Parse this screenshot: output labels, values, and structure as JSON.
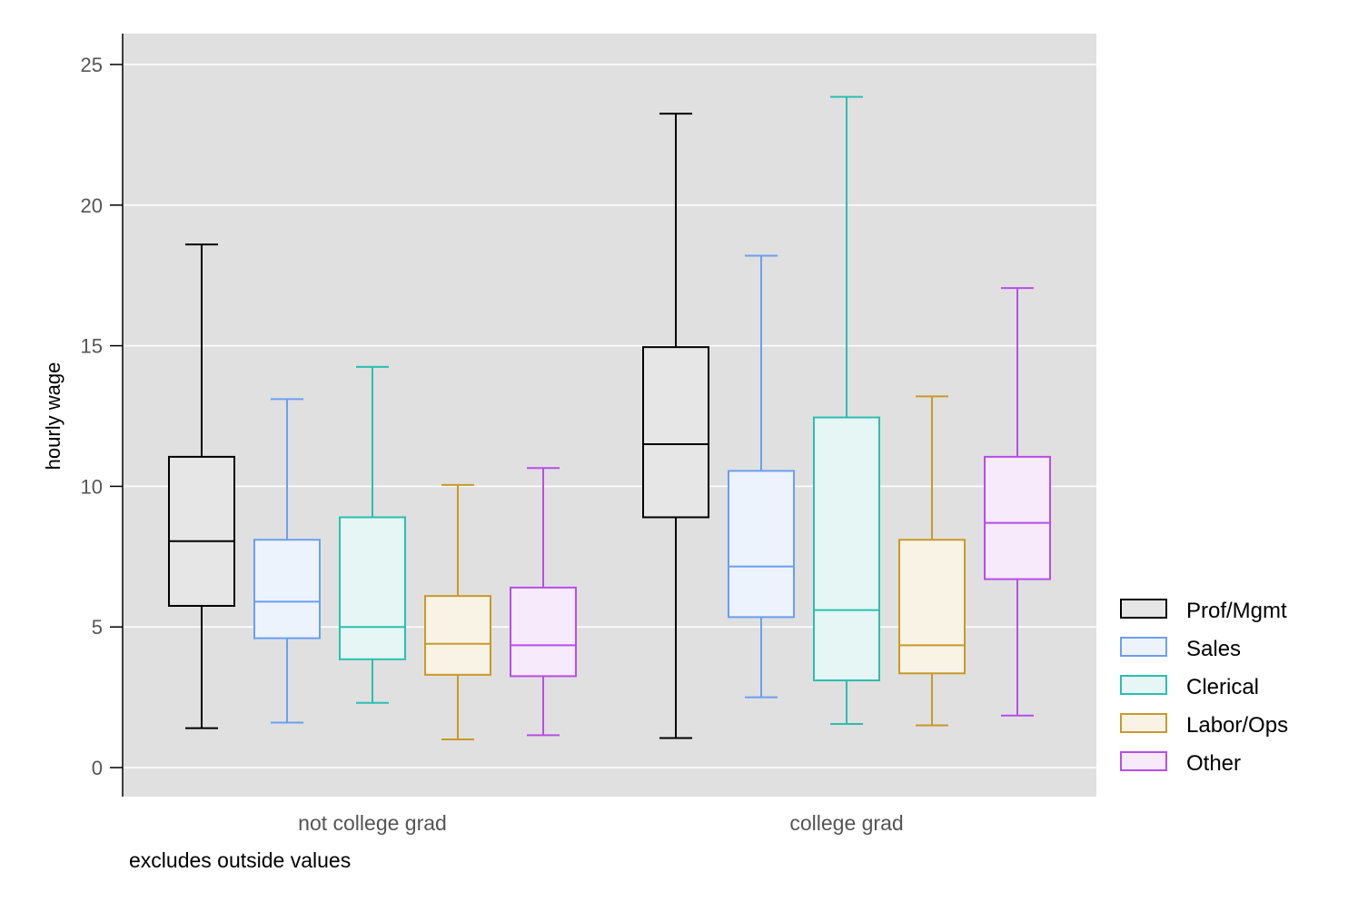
{
  "chart_data": {
    "type": "box",
    "title": "",
    "xlabel": "",
    "ylabel": "hourly wage",
    "note": "excludes outside values",
    "ylim": [
      -1,
      26
    ],
    "yticks": [
      0,
      5,
      10,
      15,
      20,
      25
    ],
    "grid": true,
    "legend_position": "right",
    "categories": [
      "not college grad",
      "college grad"
    ],
    "series": [
      {
        "name": "Prof/Mgmt",
        "color": "#000000",
        "fill": "#e6e6e6",
        "boxes": [
          {
            "whisker_low": 1.4,
            "q1": 5.75,
            "median": 8.05,
            "q3": 11.05,
            "whisker_high": 18.6
          },
          {
            "whisker_low": 1.05,
            "q1": 8.9,
            "median": 11.5,
            "q3": 14.95,
            "whisker_high": 23.25
          }
        ]
      },
      {
        "name": "Sales",
        "color": "#6a9ff0",
        "fill": "#edf3fd",
        "boxes": [
          {
            "whisker_low": 1.6,
            "q1": 4.6,
            "median": 5.9,
            "q3": 8.1,
            "whisker_high": 13.1
          },
          {
            "whisker_low": 2.5,
            "q1": 5.35,
            "median": 7.15,
            "q3": 10.55,
            "whisker_high": 18.2
          }
        ]
      },
      {
        "name": "Clerical",
        "color": "#2bbfb0",
        "fill": "#e5f6f4",
        "boxes": [
          {
            "whisker_low": 2.3,
            "q1": 3.85,
            "median": 5.0,
            "q3": 8.9,
            "whisker_high": 14.25
          },
          {
            "whisker_low": 1.55,
            "q1": 3.1,
            "median": 5.6,
            "q3": 12.45,
            "whisker_high": 23.85
          }
        ]
      },
      {
        "name": "Labor/Ops",
        "color": "#c9992a",
        "fill": "#f9f3e6",
        "boxes": [
          {
            "whisker_low": 1.0,
            "q1": 3.3,
            "median": 4.4,
            "q3": 6.1,
            "whisker_high": 10.05
          },
          {
            "whisker_low": 1.5,
            "q1": 3.35,
            "median": 4.35,
            "q3": 8.1,
            "whisker_high": 13.2
          }
        ]
      },
      {
        "name": "Other",
        "color": "#b84de8",
        "fill": "#f6eafb",
        "boxes": [
          {
            "whisker_low": 1.15,
            "q1": 3.25,
            "median": 4.35,
            "q3": 6.4,
            "whisker_high": 10.65
          },
          {
            "whisker_low": 1.85,
            "q1": 6.7,
            "median": 8.7,
            "q3": 11.05,
            "whisker_high": 17.05
          }
        ]
      }
    ]
  }
}
